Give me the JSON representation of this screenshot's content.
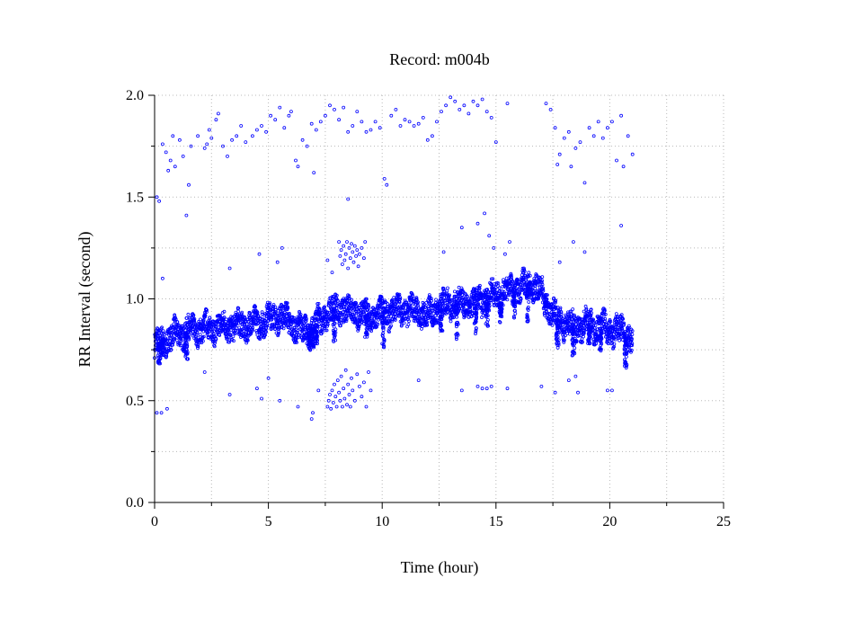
{
  "chart_data": {
    "type": "scatter",
    "title": "Record:  m004b",
    "xlabel": "Time (hour)",
    "ylabel": "RR Interval (second)",
    "xlim": [
      0,
      25
    ],
    "ylim": [
      0,
      2
    ],
    "xticks": [
      "0",
      "5",
      "10",
      "15",
      "20",
      "25"
    ],
    "yticks": [
      "0.0",
      "0.5",
      "1.0",
      "1.5",
      "2.0"
    ],
    "grid": true,
    "marker_color": "#0000ff",
    "series": [
      {
        "baseline": [
          [
            0.0,
            0.77
          ],
          [
            0.5,
            0.8
          ],
          [
            1.0,
            0.83
          ],
          [
            1.5,
            0.84
          ],
          [
            2.0,
            0.85
          ],
          [
            2.5,
            0.86
          ],
          [
            3.0,
            0.86
          ],
          [
            3.5,
            0.87
          ],
          [
            4.0,
            0.87
          ],
          [
            4.5,
            0.88
          ],
          [
            5.0,
            0.9
          ],
          [
            5.5,
            0.92
          ],
          [
            6.0,
            0.88
          ],
          [
            6.5,
            0.84
          ],
          [
            7.0,
            0.86
          ],
          [
            7.5,
            0.92
          ],
          [
            8.0,
            0.95
          ],
          [
            8.5,
            0.95
          ],
          [
            9.0,
            0.93
          ],
          [
            9.5,
            0.91
          ],
          [
            10.0,
            0.93
          ],
          [
            10.5,
            0.94
          ],
          [
            11.0,
            0.95
          ],
          [
            11.5,
            0.94
          ],
          [
            12.0,
            0.92
          ],
          [
            12.5,
            0.96
          ],
          [
            13.0,
            0.98
          ],
          [
            13.5,
            0.98
          ],
          [
            14.0,
            0.97
          ],
          [
            14.5,
            1.0
          ],
          [
            15.0,
            1.02
          ],
          [
            15.5,
            1.04
          ],
          [
            16.0,
            1.05
          ],
          [
            16.5,
            1.07
          ],
          [
            17.0,
            1.03
          ],
          [
            17.5,
            0.92
          ],
          [
            18.0,
            0.88
          ],
          [
            18.5,
            0.86
          ],
          [
            19.0,
            0.88
          ],
          [
            19.5,
            0.86
          ],
          [
            20.0,
            0.85
          ],
          [
            20.5,
            0.84
          ],
          [
            21.0,
            0.8
          ]
        ],
        "band_halfwidth": 0.06,
        "dips": [
          [
            0.2,
            0.68
          ],
          [
            0.35,
            0.72
          ],
          [
            1.4,
            0.7
          ],
          [
            6.8,
            0.74
          ],
          [
            6.95,
            0.76
          ],
          [
            7.1,
            0.78
          ],
          [
            7.9,
            0.78
          ],
          [
            9.3,
            0.8
          ],
          [
            10.05,
            0.76
          ],
          [
            12.6,
            0.84
          ],
          [
            13.3,
            0.8
          ],
          [
            14.1,
            0.82
          ],
          [
            14.6,
            0.86
          ],
          [
            15.2,
            0.88
          ],
          [
            15.8,
            0.9
          ],
          [
            16.4,
            0.88
          ],
          [
            17.2,
            0.96
          ],
          [
            17.7,
            0.76
          ],
          [
            18.4,
            0.72
          ],
          [
            19.1,
            0.78
          ],
          [
            19.6,
            0.74
          ],
          [
            20.7,
            0.66
          ]
        ],
        "outliers": [
          [
            0.1,
            1.5
          ],
          [
            0.2,
            1.48
          ],
          [
            0.35,
            1.76
          ],
          [
            0.5,
            1.72
          ],
          [
            0.6,
            1.63
          ],
          [
            0.7,
            1.68
          ],
          [
            0.8,
            1.8
          ],
          [
            0.9,
            1.65
          ],
          [
            1.1,
            1.78
          ],
          [
            1.25,
            1.7
          ],
          [
            1.5,
            1.56
          ],
          [
            1.6,
            1.75
          ],
          [
            1.9,
            1.8
          ],
          [
            2.2,
            1.74
          ],
          [
            2.3,
            1.76
          ],
          [
            2.4,
            1.83
          ],
          [
            2.5,
            1.79
          ],
          [
            2.7,
            1.88
          ],
          [
            2.8,
            1.91
          ],
          [
            3.0,
            1.75
          ],
          [
            3.2,
            1.7
          ],
          [
            3.4,
            1.78
          ],
          [
            3.6,
            1.8
          ],
          [
            3.8,
            1.85
          ],
          [
            4.0,
            1.77
          ],
          [
            4.3,
            1.8
          ],
          [
            4.5,
            1.83
          ],
          [
            4.7,
            1.85
          ],
          [
            4.9,
            1.82
          ],
          [
            5.1,
            1.9
          ],
          [
            5.3,
            1.88
          ],
          [
            5.5,
            1.94
          ],
          [
            5.7,
            1.84
          ],
          [
            5.9,
            1.9
          ],
          [
            6.0,
            1.92
          ],
          [
            6.2,
            1.68
          ],
          [
            6.3,
            1.65
          ],
          [
            6.5,
            1.78
          ],
          [
            6.7,
            1.75
          ],
          [
            6.9,
            1.86
          ],
          [
            7.0,
            1.62
          ],
          [
            7.1,
            1.83
          ],
          [
            7.3,
            1.87
          ],
          [
            7.5,
            1.9
          ],
          [
            7.7,
            1.95
          ],
          [
            7.9,
            1.93
          ],
          [
            8.1,
            1.88
          ],
          [
            8.3,
            1.94
          ],
          [
            8.5,
            1.82
          ],
          [
            8.7,
            1.85
          ],
          [
            8.9,
            1.92
          ],
          [
            9.1,
            1.87
          ],
          [
            9.3,
            1.82
          ],
          [
            9.5,
            1.83
          ],
          [
            9.7,
            1.87
          ],
          [
            9.9,
            1.84
          ],
          [
            10.1,
            1.59
          ],
          [
            10.2,
            1.56
          ],
          [
            10.4,
            1.9
          ],
          [
            10.6,
            1.93
          ],
          [
            10.8,
            1.85
          ],
          [
            11.0,
            1.88
          ],
          [
            11.2,
            1.87
          ],
          [
            11.4,
            1.85
          ],
          [
            11.6,
            1.86
          ],
          [
            11.8,
            1.89
          ],
          [
            12.0,
            1.78
          ],
          [
            12.2,
            1.8
          ],
          [
            12.4,
            1.87
          ],
          [
            12.6,
            1.92
          ],
          [
            12.8,
            1.95
          ],
          [
            13.0,
            1.99
          ],
          [
            13.2,
            1.97
          ],
          [
            13.4,
            1.93
          ],
          [
            13.6,
            1.95
          ],
          [
            13.8,
            1.91
          ],
          [
            14.0,
            1.97
          ],
          [
            14.2,
            1.95
          ],
          [
            14.4,
            1.98
          ],
          [
            14.6,
            1.92
          ],
          [
            14.8,
            1.89
          ],
          [
            15.0,
            1.77
          ],
          [
            15.5,
            1.96
          ],
          [
            17.2,
            1.96
          ],
          [
            17.4,
            1.93
          ],
          [
            17.6,
            1.84
          ],
          [
            17.7,
            1.66
          ],
          [
            17.8,
            1.71
          ],
          [
            18.0,
            1.79
          ],
          [
            18.2,
            1.82
          ],
          [
            18.3,
            1.65
          ],
          [
            18.5,
            1.74
          ],
          [
            18.7,
            1.77
          ],
          [
            18.9,
            1.57
          ],
          [
            19.1,
            1.84
          ],
          [
            19.3,
            1.8
          ],
          [
            19.5,
            1.87
          ],
          [
            19.7,
            1.79
          ],
          [
            19.9,
            1.84
          ],
          [
            20.1,
            1.87
          ],
          [
            20.3,
            1.68
          ],
          [
            20.5,
            1.9
          ],
          [
            20.6,
            1.65
          ],
          [
            20.8,
            1.8
          ],
          [
            21.0,
            1.71
          ],
          [
            0.35,
            1.1
          ],
          [
            1.4,
            1.41
          ],
          [
            3.3,
            1.15
          ],
          [
            4.6,
            1.22
          ],
          [
            5.4,
            1.18
          ],
          [
            5.6,
            1.25
          ],
          [
            8.1,
            1.28
          ],
          [
            8.15,
            1.21
          ],
          [
            8.2,
            1.24
          ],
          [
            8.25,
            1.17
          ],
          [
            8.3,
            1.26
          ],
          [
            8.35,
            1.19
          ],
          [
            8.4,
            1.22
          ],
          [
            8.45,
            1.28
          ],
          [
            8.5,
            1.15
          ],
          [
            8.55,
            1.25
          ],
          [
            8.6,
            1.2
          ],
          [
            8.65,
            1.27
          ],
          [
            8.7,
            1.23
          ],
          [
            8.75,
            1.18
          ],
          [
            8.8,
            1.26
          ],
          [
            8.85,
            1.21
          ],
          [
            8.9,
            1.24
          ],
          [
            8.95,
            1.16
          ],
          [
            9.0,
            1.22
          ],
          [
            9.1,
            1.25
          ],
          [
            9.2,
            1.2
          ],
          [
            9.25,
            1.28
          ],
          [
            7.6,
            1.19
          ],
          [
            7.8,
            1.13
          ],
          [
            8.5,
            1.49
          ],
          [
            12.7,
            1.23
          ],
          [
            13.5,
            1.35
          ],
          [
            14.2,
            1.37
          ],
          [
            14.5,
            1.42
          ],
          [
            14.7,
            1.31
          ],
          [
            14.9,
            1.25
          ],
          [
            15.4,
            1.22
          ],
          [
            15.6,
            1.28
          ],
          [
            17.8,
            1.18
          ],
          [
            18.4,
            1.28
          ],
          [
            18.9,
            1.23
          ],
          [
            20.5,
            1.36
          ],
          [
            0.1,
            0.44
          ],
          [
            0.3,
            0.44
          ],
          [
            0.55,
            0.46
          ],
          [
            2.2,
            0.64
          ],
          [
            3.3,
            0.53
          ],
          [
            4.5,
            0.56
          ],
          [
            4.7,
            0.51
          ],
          [
            5.0,
            0.61
          ],
          [
            5.5,
            0.5
          ],
          [
            6.3,
            0.47
          ],
          [
            6.9,
            0.41
          ],
          [
            6.95,
            0.44
          ],
          [
            7.2,
            0.55
          ],
          [
            7.6,
            0.47
          ],
          [
            7.65,
            0.5
          ],
          [
            7.7,
            0.53
          ],
          [
            7.75,
            0.46
          ],
          [
            7.8,
            0.55
          ],
          [
            7.85,
            0.49
          ],
          [
            7.9,
            0.58
          ],
          [
            7.95,
            0.52
          ],
          [
            8.0,
            0.47
          ],
          [
            8.05,
            0.6
          ],
          [
            8.1,
            0.54
          ],
          [
            8.15,
            0.5
          ],
          [
            8.2,
            0.62
          ],
          [
            8.25,
            0.47
          ],
          [
            8.3,
            0.56
          ],
          [
            8.35,
            0.51
          ],
          [
            8.4,
            0.65
          ],
          [
            8.45,
            0.48
          ],
          [
            8.5,
            0.58
          ],
          [
            8.55,
            0.53
          ],
          [
            8.6,
            0.47
          ],
          [
            8.65,
            0.61
          ],
          [
            8.7,
            0.55
          ],
          [
            8.8,
            0.5
          ],
          [
            8.9,
            0.63
          ],
          [
            9.0,
            0.57
          ],
          [
            9.1,
            0.52
          ],
          [
            9.2,
            0.59
          ],
          [
            9.3,
            0.47
          ],
          [
            9.4,
            0.64
          ],
          [
            9.5,
            0.55
          ],
          [
            11.6,
            0.6
          ],
          [
            13.5,
            0.55
          ],
          [
            14.2,
            0.57
          ],
          [
            14.4,
            0.56
          ],
          [
            14.6,
            0.56
          ],
          [
            14.8,
            0.57
          ],
          [
            15.5,
            0.56
          ],
          [
            17.0,
            0.57
          ],
          [
            17.6,
            0.54
          ],
          [
            18.2,
            0.6
          ],
          [
            18.5,
            0.62
          ],
          [
            18.6,
            0.54
          ],
          [
            19.9,
            0.55
          ],
          [
            20.1,
            0.55
          ]
        ]
      }
    ]
  }
}
